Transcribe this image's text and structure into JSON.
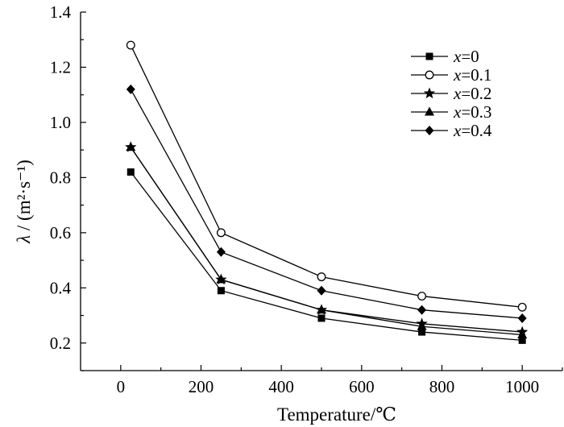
{
  "chart_data": {
    "type": "line",
    "xlabel": "Temperature/℃",
    "ylabel_symbol": "λ",
    "ylabel_unit": " / (m²·s⁻¹)",
    "xlim": [
      -100,
      1100
    ],
    "ylim": [
      0.1,
      1.4
    ],
    "xticks": [
      0,
      200,
      400,
      600,
      800,
      1000
    ],
    "xtick_labels": [
      "0",
      "200",
      "400",
      "600",
      "800",
      "1000"
    ],
    "yticks": [
      0.2,
      0.4,
      0.6,
      0.8,
      1.0,
      1.2,
      1.4
    ],
    "ytick_labels": [
      "0.2",
      "0.4",
      "0.6",
      "0.8",
      "1.0",
      "1.2",
      "1.4"
    ],
    "grid": false,
    "legend_position": "top-right",
    "x": [
      25,
      250,
      500,
      750,
      1000
    ],
    "series": [
      {
        "name": "x=0",
        "var": "x",
        "value": "=0",
        "marker": "square-filled",
        "values": [
          0.82,
          0.39,
          0.29,
          0.24,
          0.21
        ]
      },
      {
        "name": "x=0.1",
        "var": "x",
        "value": "=0.1",
        "marker": "circle-open",
        "values": [
          1.28,
          0.6,
          0.44,
          0.37,
          0.33
        ]
      },
      {
        "name": "x=0.2",
        "var": "x",
        "value": "=0.2",
        "marker": "star-filled",
        "values": [
          0.91,
          0.43,
          0.32,
          0.27,
          0.24
        ]
      },
      {
        "name": "x=0.3",
        "var": "x",
        "value": "=0.3",
        "marker": "triangle-filled",
        "values": [
          0.91,
          0.43,
          0.32,
          0.26,
          0.23
        ]
      },
      {
        "name": "x=0.4",
        "var": "x",
        "value": "=0.4",
        "marker": "diamond-filled",
        "values": [
          1.12,
          0.53,
          0.39,
          0.32,
          0.29
        ]
      }
    ]
  }
}
